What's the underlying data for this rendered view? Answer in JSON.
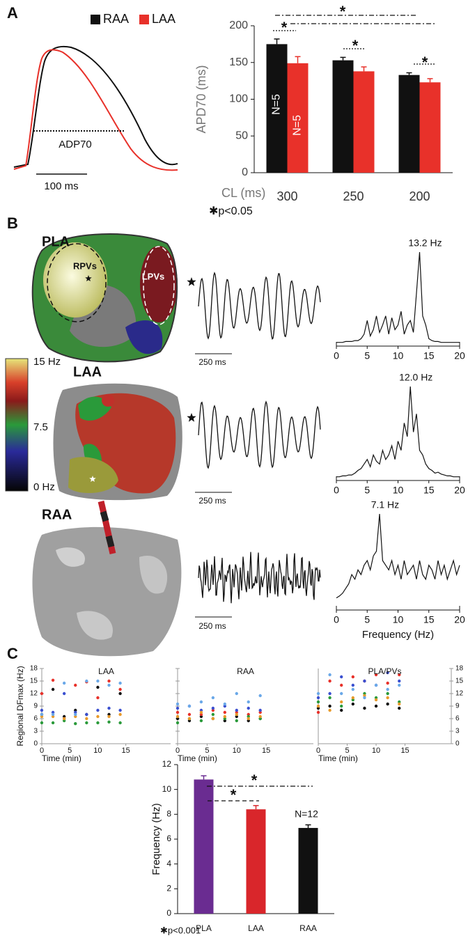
{
  "figure": {
    "panels": [
      "A",
      "B",
      "C"
    ],
    "ap_trace": {
      "label": "ADP70",
      "scale_bar": "100 ms"
    },
    "maps": [
      {
        "label": "PLA",
        "regions": [
          "RPVs",
          "LPVs"
        ]
      },
      {
        "label": "LAA"
      },
      {
        "label": "RAA"
      }
    ],
    "colorbar": [
      "15 Hz",
      "7.5",
      "0 Hz"
    ],
    "traces": [
      {
        "scale_bar": "250 ms"
      },
      {
        "scale_bar": "250 ms"
      },
      {
        "scale_bar": "250 ms"
      }
    ]
  },
  "chart_data": [
    {
      "type": "bar",
      "x_label": "CL (ms)",
      "y_label": "APD70 (ms)",
      "categories": [
        "300",
        "250",
        "200"
      ],
      "series": [
        {
          "name": "RAA",
          "color": "#111111",
          "values": [
            175,
            153,
            133
          ],
          "errors": [
            7,
            4,
            3
          ]
        },
        {
          "name": "LAA",
          "color": "#e8312a",
          "values": [
            149,
            138,
            123
          ],
          "errors": [
            9,
            6,
            5
          ]
        }
      ],
      "ylim": [
        0,
        200
      ],
      "yticks": [
        0,
        50,
        100,
        150,
        200
      ],
      "n_labels": [
        "N=5",
        "N=5"
      ],
      "significance": [
        "*",
        "*",
        "*",
        "*"
      ],
      "footnote": "✱p<0.05"
    },
    {
      "type": "line",
      "peak_label": "13.2 Hz",
      "color": "#111111",
      "x": [
        0,
        0.5,
        1,
        1.5,
        2,
        2.5,
        3,
        3.5,
        4,
        4.5,
        5,
        5.5,
        6,
        6.5,
        7,
        7.5,
        8,
        8.5,
        9,
        9.5,
        10,
        10.5,
        11,
        11.5,
        12,
        12.5,
        13,
        13.5,
        14,
        14.5,
        15,
        15.5,
        16,
        16.5,
        17,
        17.5,
        18,
        18.5,
        19,
        19.5,
        20
      ],
      "values": [
        0.01,
        0.01,
        0.01,
        0.02,
        0.02,
        0.02,
        0.03,
        0.03,
        0.05,
        0.1,
        0.25,
        0.08,
        0.15,
        0.3,
        0.12,
        0.2,
        0.3,
        0.1,
        0.28,
        0.15,
        0.2,
        0.35,
        0.1,
        0.2,
        0.25,
        0.12,
        0.55,
        1.0,
        0.3,
        0.2,
        0.05,
        0.03,
        0.02,
        0.02,
        0.01,
        0.01,
        0.01,
        0.01,
        0.01,
        0.01,
        0.01
      ],
      "xlim": [
        0,
        20
      ],
      "xticks": [
        0,
        5,
        10,
        15,
        20
      ],
      "ylim": [
        0,
        1
      ]
    },
    {
      "type": "line",
      "peak_label": "12.0 Hz",
      "color": "#111111",
      "x": [
        0,
        0.5,
        1,
        1.5,
        2,
        2.5,
        3,
        3.5,
        4,
        4.5,
        5,
        5.5,
        6,
        6.5,
        7,
        7.5,
        8,
        8.5,
        9,
        9.5,
        10,
        10.5,
        11,
        11.5,
        12,
        12.5,
        13,
        13.5,
        14,
        14.5,
        15,
        15.5,
        16,
        16.5,
        17,
        17.5,
        18,
        18.5,
        19,
        19.5,
        20
      ],
      "values": [
        0.01,
        0.01,
        0.02,
        0.02,
        0.03,
        0.03,
        0.05,
        0.08,
        0.1,
        0.15,
        0.2,
        0.12,
        0.25,
        0.18,
        0.15,
        0.3,
        0.2,
        0.25,
        0.35,
        0.2,
        0.4,
        0.3,
        0.6,
        0.45,
        1.0,
        0.5,
        0.7,
        0.3,
        0.25,
        0.15,
        0.1,
        0.08,
        0.05,
        0.06,
        0.04,
        0.03,
        0.02,
        0.02,
        0.01,
        0.01,
        0.01
      ],
      "xlim": [
        0,
        20
      ],
      "xticks": [
        0,
        5,
        10,
        15,
        20
      ],
      "ylim": [
        0,
        1
      ]
    },
    {
      "type": "line",
      "peak_label": "7.1 Hz",
      "x_label": "Frequency (Hz)",
      "color": "#111111",
      "x": [
        0,
        0.5,
        1,
        1.5,
        2,
        2.5,
        3,
        3.5,
        4,
        4.5,
        5,
        5.5,
        6,
        6.5,
        7,
        7.5,
        8,
        8.5,
        9,
        9.5,
        10,
        10.5,
        11,
        11.5,
        12,
        12.5,
        13,
        13.5,
        14,
        14.5,
        15,
        15.5,
        16,
        16.5,
        17,
        17.5,
        18,
        18.5,
        19,
        19.5,
        20
      ],
      "values": [
        0.1,
        0.12,
        0.15,
        0.2,
        0.25,
        0.35,
        0.3,
        0.4,
        0.35,
        0.45,
        0.5,
        0.4,
        0.55,
        0.6,
        1.0,
        0.5,
        0.45,
        0.4,
        0.5,
        0.35,
        0.45,
        0.3,
        0.5,
        0.35,
        0.4,
        0.45,
        0.3,
        0.5,
        0.35,
        0.3,
        0.45,
        0.4,
        0.3,
        0.5,
        0.35,
        0.45,
        0.3,
        0.4,
        0.5,
        0.35,
        0.45
      ],
      "xlim": [
        0,
        20
      ],
      "xticks": [
        0,
        5,
        10,
        15,
        20
      ],
      "ylim": [
        0,
        1
      ]
    },
    {
      "type": "scatter",
      "title": "LAA",
      "x_label": "Time (min)",
      "y_label": "Regional DFmax (Hz)",
      "x": [
        0,
        2,
        4,
        6,
        8,
        10,
        12,
        14
      ],
      "series": [
        {
          "color": "#111111",
          "values": [
            7,
            13,
            6.5,
            8,
            7,
            13.5,
            7,
            12
          ]
        },
        {
          "color": "#e8312a",
          "values": [
            12,
            15.2,
            6,
            14,
            14.8,
            11,
            15,
            13
          ]
        },
        {
          "color": "#3a4fd0",
          "values": [
            8,
            7.5,
            12,
            7.5,
            7,
            8,
            8.5,
            8
          ]
        },
        {
          "color": "#2a9a3a",
          "values": [
            5,
            5,
            5.5,
            4.8,
            5,
            5,
            5.2,
            5
          ]
        },
        {
          "color": "#e89a2a",
          "values": [
            6.5,
            6.5,
            6,
            6.5,
            6,
            6.5,
            6.5,
            7
          ]
        },
        {
          "color": "#6aa8e8",
          "values": [
            7,
            7,
            14.5,
            7,
            15,
            15,
            14,
            14.5
          ]
        }
      ],
      "xlim": [
        0,
        23
      ],
      "ylim": [
        0,
        18
      ],
      "xticks": [
        0,
        5,
        10,
        15
      ],
      "yticks": [
        0,
        3,
        6,
        9,
        12,
        15,
        18
      ],
      "ytick_side": "left"
    },
    {
      "type": "scatter",
      "title": "RAA",
      "x_label": "Time (min)",
      "x": [
        0,
        2,
        4,
        6,
        8,
        10,
        12,
        14
      ],
      "series": [
        {
          "color": "#111111",
          "values": [
            6,
            5.5,
            6.5,
            6,
            5.5,
            6.5,
            5.5,
            6
          ]
        },
        {
          "color": "#e8312a",
          "values": [
            7.5,
            7,
            7,
            8,
            7.5,
            7.5,
            7,
            7.5
          ]
        },
        {
          "color": "#3a4fd0",
          "values": [
            8.5,
            9,
            8,
            8.5,
            9,
            8,
            8.5,
            8
          ]
        },
        {
          "color": "#2a9a3a",
          "values": [
            5,
            6,
            5.5,
            7,
            6,
            5.5,
            6.5,
            6
          ]
        },
        {
          "color": "#e89a2a",
          "values": [
            6.5,
            6,
            7.5,
            6,
            6.5,
            7,
            6,
            6.5
          ]
        },
        {
          "color": "#6aa8e8",
          "values": [
            9.5,
            9,
            10,
            11,
            9.5,
            12,
            10,
            11.5
          ]
        }
      ],
      "xlim": [
        0,
        23
      ],
      "ylim": [
        0,
        18
      ],
      "xticks": [
        0,
        5,
        10,
        15
      ],
      "yticks": [
        0,
        3,
        6,
        9,
        12,
        15,
        18
      ],
      "ytick_side": "none"
    },
    {
      "type": "scatter",
      "title": "PLA/PVs",
      "x_label": "Time (min)",
      "x": [
        0,
        2,
        4,
        6,
        8,
        10,
        12,
        14
      ],
      "series": [
        {
          "color": "#111111",
          "values": [
            8.5,
            9,
            8,
            9.5,
            8.5,
            9,
            9.5,
            8.5
          ]
        },
        {
          "color": "#e8312a",
          "values": [
            7.5,
            15,
            14,
            16,
            15,
            16.5,
            14.5,
            16.5
          ]
        },
        {
          "color": "#3a4fd0",
          "values": [
            11,
            12,
            16,
            14,
            15,
            14,
            17,
            15
          ]
        },
        {
          "color": "#2a9a3a",
          "values": [
            10,
            11,
            9,
            10.5,
            12,
            11,
            12,
            10
          ]
        },
        {
          "color": "#e89a2a",
          "values": [
            9,
            8,
            10,
            11,
            11.5,
            10.5,
            11,
            9.5
          ]
        },
        {
          "color": "#6aa8e8",
          "values": [
            12,
            16.5,
            12,
            13,
            11,
            14,
            13,
            14
          ]
        }
      ],
      "xlim": [
        0,
        23
      ],
      "ylim": [
        0,
        18
      ],
      "xticks": [
        0,
        5,
        10,
        15
      ],
      "yticks": [
        0,
        3,
        6,
        9,
        12,
        15,
        18
      ],
      "ytick_side": "right"
    },
    {
      "type": "bar",
      "y_label": "Frequency (Hz)",
      "categories": [
        "PLA",
        "LAA",
        "RAA"
      ],
      "values": [
        10.8,
        8.4,
        6.9
      ],
      "errors": [
        0.3,
        0.3,
        0.25
      ],
      "colors": [
        "#6a2c91",
        "#d9262b",
        "#111111"
      ],
      "ylim": [
        0,
        12
      ],
      "yticks": [
        0,
        2,
        4,
        6,
        8,
        10,
        12
      ],
      "n_labels": [
        "N=12"
      ],
      "significance": [
        "*",
        "*"
      ],
      "footnote": "✱p<0.001"
    }
  ]
}
